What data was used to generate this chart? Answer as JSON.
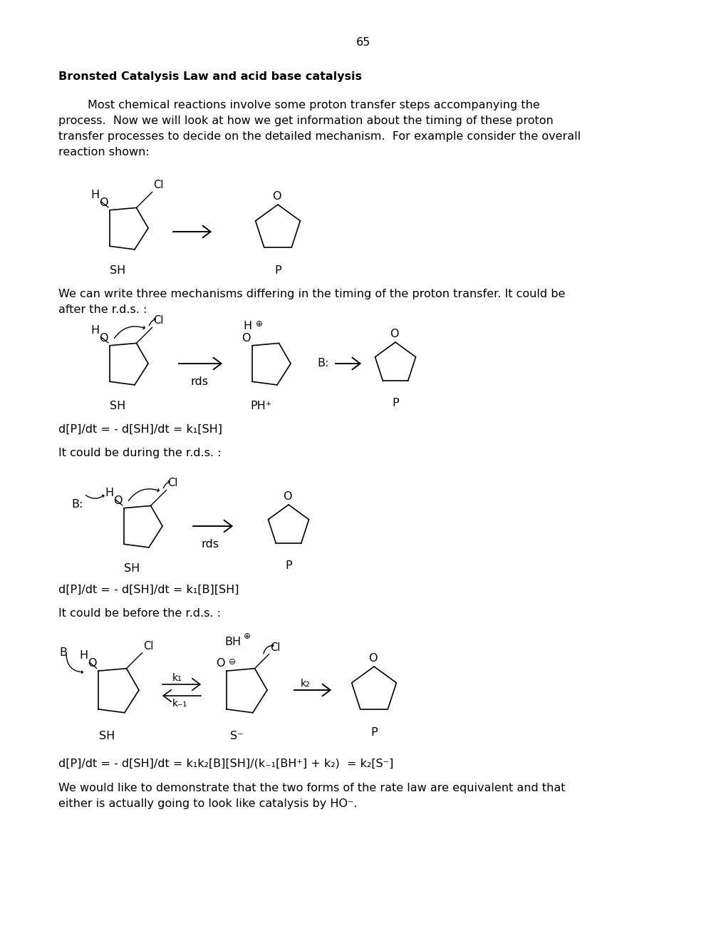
{
  "page_number": "65",
  "title_bold": "Bronsted Catalysis Law and acid base catalysis",
  "title_period": ".",
  "para1_lines": [
    "        Most chemical reactions involve some proton transfer steps accompanying the",
    "process.  Now we will look at how we get information about the timing of these proton",
    "transfer processes to decide on the detailed mechanism.  For example consider the overall",
    "reaction shown:"
  ],
  "intro2_lines": [
    "We can write three mechanisms differing in the timing of the proton transfer. It could be",
    "after the r.d.s. :"
  ],
  "eq1": "d[P]/dt = - d[SH]/dt = k₁[SH]",
  "during_text": "It could be during the r.d.s. :",
  "eq2": "d[P]/dt = - d[SH]/dt = k₁[B][SH]",
  "before_text": "It could be before the r.d.s. :",
  "eq3": "d[P]/dt = - d[SH]/dt = k₁k₂[B][SH]/(k₋₁[BH⁺] + k₂)  = k₂[S⁻]",
  "conclusion_lines": [
    "We would like to demonstrate that the two forms of the rate law are equivalent and that",
    "either is actually going to look like catalysis by HO⁻."
  ],
  "bg_color": "#ffffff",
  "text_color": "#000000",
  "font_size": 11.5
}
